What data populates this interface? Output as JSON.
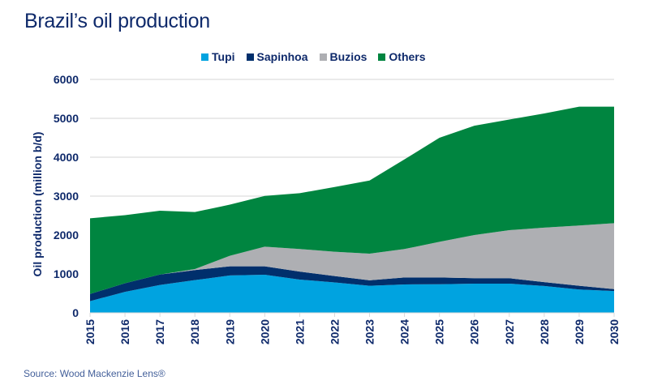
{
  "chart_data": {
    "type": "area",
    "stacked": true,
    "title": "Brazil’s oil production",
    "ylabel": "Oil production (million b/d)",
    "xlabel": "",
    "ylim": [
      0,
      6000
    ],
    "yticks": [
      0,
      1000,
      2000,
      3000,
      4000,
      5000,
      6000
    ],
    "grid": true,
    "legend_position": "top",
    "categories": [
      "2015",
      "2016",
      "2017",
      "2018",
      "2019",
      "2020",
      "2021",
      "2022",
      "2023",
      "2024",
      "2025",
      "2026",
      "2027",
      "2028",
      "2029",
      "2030"
    ],
    "series": [
      {
        "name": "Tupi",
        "color": "#00a3e0",
        "values": [
          300,
          540,
          715,
          840,
          960,
          980,
          855,
          780,
          695,
          730,
          735,
          750,
          750,
          690,
          600,
          560
        ]
      },
      {
        "name": "Sapinhoa",
        "color": "#002f6c",
        "values": [
          185,
          220,
          270,
          260,
          235,
          215,
          205,
          165,
          140,
          180,
          175,
          140,
          140,
          100,
          95,
          50
        ]
      },
      {
        "name": "Buzios",
        "color": "#aeafb3",
        "values": [
          0,
          0,
          0,
          25,
          270,
          505,
          580,
          625,
          685,
          730,
          915,
          1110,
          1235,
          1400,
          1550,
          1695
        ]
      },
      {
        "name": "Others",
        "color": "#008540",
        "values": [
          1945,
          1750,
          1640,
          1465,
          1315,
          1305,
          1435,
          1665,
          1880,
          2305,
          2675,
          2810,
          2845,
          2935,
          3055,
          2995
        ]
      }
    ],
    "source": "Source: Wood Mackenzie Lens®"
  }
}
